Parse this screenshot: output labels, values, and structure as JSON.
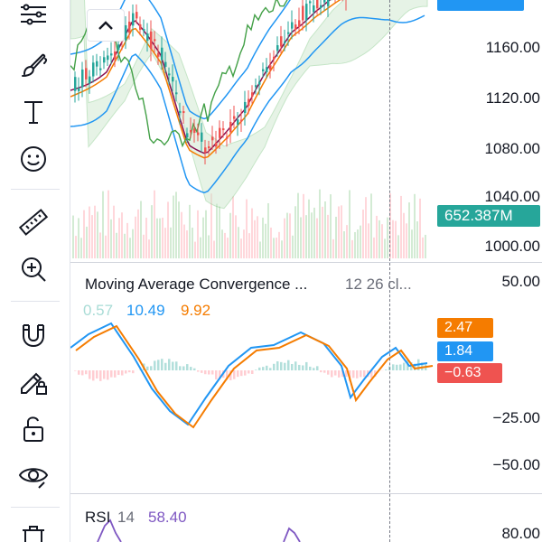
{
  "price_axis": {
    "labels": [
      "1160.00",
      "1120.00",
      "1080.00",
      "1040.00",
      "1000.00"
    ],
    "volume_badge": "652.387M",
    "volume_badge_color": "#26a69a"
  },
  "macd": {
    "title": "Moving Average Convergence ...",
    "params": "12 26 cl...",
    "values": [
      "0.57",
      "10.49",
      "9.92"
    ],
    "value_colors": [
      "#a9dcd6",
      "#2196f3",
      "#f57c00"
    ],
    "axis_labels": [
      "50.00",
      "−25.00",
      "−50.00"
    ],
    "badges": [
      {
        "text": "2.47",
        "color": "#f57c00"
      },
      {
        "text": "1.84",
        "color": "#2196f3"
      },
      {
        "text": "−0.63",
        "color": "#ef5350"
      }
    ]
  },
  "rsi": {
    "title": "RSI",
    "param": "14",
    "value": "58.40",
    "value_color": "#7e57c2",
    "axis_label": "80.00"
  },
  "toolbar": {
    "icons": [
      "trend-line-icon",
      "brush-icon",
      "text-icon",
      "emoji-icon",
      "ruler-icon",
      "zoom-in-icon",
      "magnet-icon",
      "lock-drawing-icon",
      "unlock-icon",
      "eye-icon",
      "trash-icon"
    ]
  },
  "colors": {
    "up": "#26a69a",
    "down": "#ef5350",
    "macd_line": "#2196f3",
    "signal_line": "#f57c00",
    "rsi_line": "#7e57c2",
    "ichimoku_cloud_up": "#c8e6c9",
    "ichimoku_cloud_down": "#ffcdd2",
    "bollinger": "#2196f3",
    "tenkan": "#880e4f",
    "kijun": "#f57c00",
    "chikou": "#43a047"
  }
}
